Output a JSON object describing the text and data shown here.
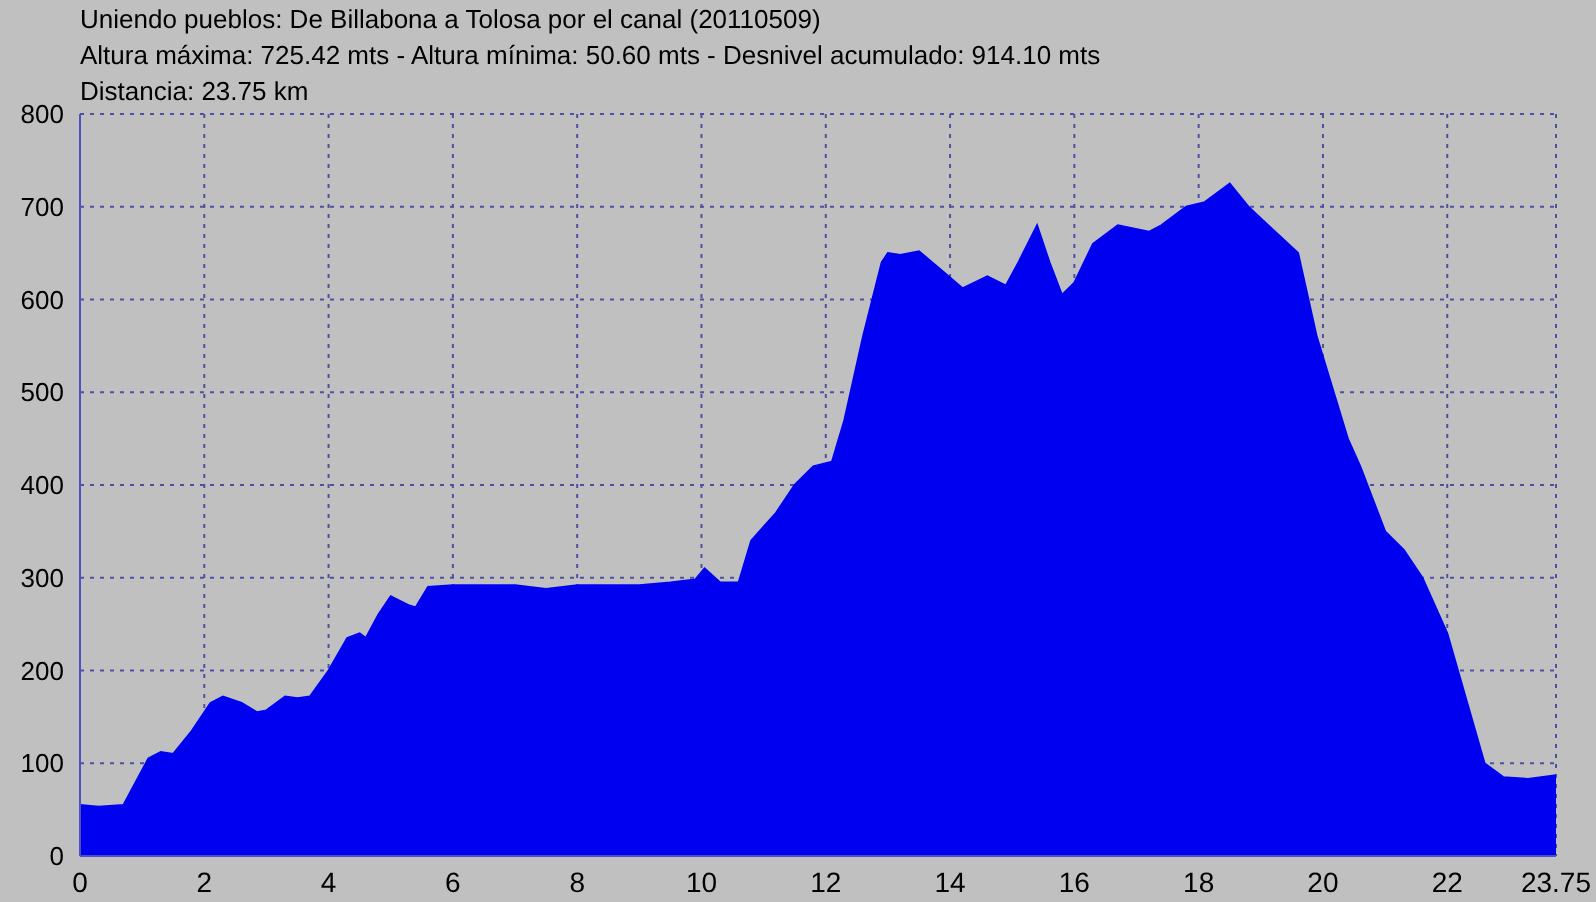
{
  "chart_data": {
    "type": "area",
    "title": "Uniendo pueblos: De Billabona a Tolosa por el canal (20110509)",
    "subtitle": "Altura máxima: 725.42 mts - Altura mínima: 50.60 mts - Desnivel acumulado: 914.10 mts",
    "annotations": [
      "Distancia: 23.75 km"
    ],
    "x": [
      0,
      0.3,
      0.7,
      0.9,
      1.1,
      1.3,
      1.5,
      1.8,
      2.1,
      2.3,
      2.6,
      2.85,
      3.0,
      3.3,
      3.5,
      3.7,
      4.0,
      4.3,
      4.5,
      4.6,
      4.8,
      5.0,
      5.3,
      5.4,
      5.6,
      6,
      7,
      7.5,
      8,
      9,
      9.5,
      9.9,
      10.05,
      10.3,
      10.6,
      10.8,
      11.2,
      11.5,
      11.8,
      12.1,
      12.3,
      12.6,
      12.9,
      13.0,
      13.2,
      13.5,
      13.8,
      14.2,
      14.6,
      14.9,
      15.1,
      15.4,
      15.6,
      15.8,
      16.0,
      16.3,
      16.7,
      17.2,
      17.4,
      17.8,
      18.1,
      18.5,
      18.8,
      19.2,
      19.6,
      19.9,
      20.4,
      20.6,
      21.0,
      21.3,
      21.6,
      22.0,
      22.3,
      22.6,
      22.9,
      23.3,
      23.75
    ],
    "series": [
      {
        "color": "#0000f0",
        "values": [
          55,
          53,
          55,
          80,
          105,
          112,
          110,
          135,
          165,
          172,
          165,
          155,
          157,
          172,
          170,
          172,
          200,
          235,
          240,
          235,
          260,
          280,
          270,
          268,
          290,
          292,
          292,
          288,
          292,
          292,
          295,
          298,
          310,
          295,
          295,
          340,
          370,
          400,
          420,
          425,
          470,
          560,
          640,
          650,
          648,
          652,
          635,
          612,
          625,
          615,
          640,
          680,
          640,
          605,
          618,
          660,
          680,
          673,
          680,
          700,
          705,
          725,
          700,
          675,
          650,
          560,
          450,
          420,
          350,
          330,
          300,
          240,
          170,
          100,
          85,
          83,
          87
        ]
      }
    ],
    "xlim": [
      0,
      23.75
    ],
    "xticks": [
      0,
      2,
      4,
      6,
      8,
      10,
      12,
      14,
      16,
      18,
      20,
      22,
      23.75
    ],
    "ylim": [
      0,
      800
    ],
    "yticks": [
      0,
      100,
      200,
      300,
      400,
      500,
      600,
      700,
      800
    ],
    "grid": true,
    "legend": false
  }
}
